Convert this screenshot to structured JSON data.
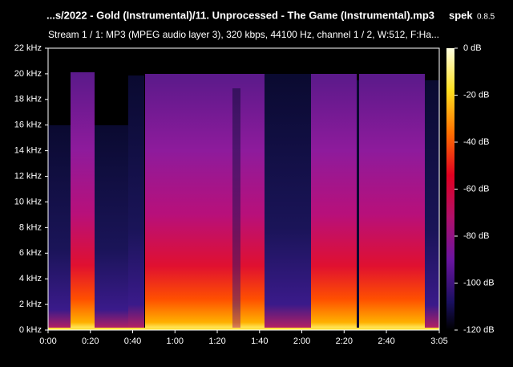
{
  "chart_data": {
    "type": "spectrogram",
    "title": "...s/2022 - Gold (Instrumental)/11. Unprocessed - The Game (Instrumental).mp3",
    "subtitle": "Stream 1 / 1: MP3 (MPEG audio layer 3), 320 kbps, 44100 Hz, channel 1 / 2, W:512, F:Ha...",
    "app_name": "spek",
    "app_version": "0.8.5",
    "xlim": [
      0,
      185
    ],
    "xticks": [
      {
        "value": 0,
        "label": "0:00"
      },
      {
        "value": 20,
        "label": "0:20"
      },
      {
        "value": 40,
        "label": "0:40"
      },
      {
        "value": 60,
        "label": "1:00"
      },
      {
        "value": 80,
        "label": "1:20"
      },
      {
        "value": 100,
        "label": "1:40"
      },
      {
        "value": 120,
        "label": "2:00"
      },
      {
        "value": 140,
        "label": "2:20"
      },
      {
        "value": 160,
        "label": "2:40"
      },
      {
        "value": 185,
        "label": "3:05"
      }
    ],
    "ylim": [
      0,
      22
    ],
    "yticks": [
      {
        "value": 0,
        "label": "0 kHz"
      },
      {
        "value": 2,
        "label": "2 kHz"
      },
      {
        "value": 4,
        "label": "4 kHz"
      },
      {
        "value": 6,
        "label": "6 kHz"
      },
      {
        "value": 8,
        "label": "8 kHz"
      },
      {
        "value": 10,
        "label": "10 kHz"
      },
      {
        "value": 12,
        "label": "12 kHz"
      },
      {
        "value": 14,
        "label": "14 kHz"
      },
      {
        "value": 16,
        "label": "16 kHz"
      },
      {
        "value": 18,
        "label": "18 kHz"
      },
      {
        "value": 20,
        "label": "20 kHz"
      },
      {
        "value": 22,
        "label": "22 kHz"
      }
    ],
    "clim": [
      -120,
      0
    ],
    "cticks": [
      {
        "value": 0,
        "label": "0 dB"
      },
      {
        "value": -20,
        "label": "-20 dB"
      },
      {
        "value": -40,
        "label": "-40 dB"
      },
      {
        "value": -60,
        "label": "-60 dB"
      },
      {
        "value": -80,
        "label": "-80 dB"
      },
      {
        "value": -100,
        "label": "-100 dB"
      },
      {
        "value": -120,
        "label": "-120 dB"
      }
    ]
  }
}
